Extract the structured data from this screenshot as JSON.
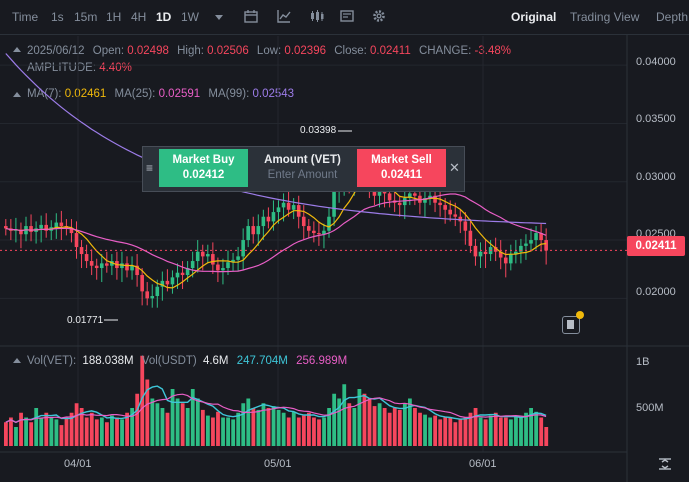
{
  "toolbar": {
    "timeframes": [
      "Time",
      "1s",
      "15m",
      "1H",
      "4H",
      "1D",
      "1W"
    ],
    "active_timeframe": "1D",
    "icons": [
      "dropdown-icon",
      "candle-settings-icon",
      "indicator-icon",
      "chart-type-icon",
      "template-icon",
      "gear-icon"
    ],
    "views": [
      "Original",
      "Trading View",
      "Depth"
    ],
    "active_view": "Original"
  },
  "ohlc": {
    "date": "2025/06/12",
    "open_label": "Open:",
    "open": "0.02498",
    "high_label": "High:",
    "high": "0.02506",
    "low_label": "Low:",
    "low": "0.02396",
    "close_label": "Close:",
    "close": "0.02411",
    "change_label": "CHANGE:",
    "change": "-3.48%",
    "amplitude_label": "AMPLITUDE:",
    "amplitude": "4.40%"
  },
  "ma": {
    "ma7_label": "MA(7):",
    "ma7": "0.02461",
    "ma25_label": "MA(25):",
    "ma25": "0.02591",
    "ma99_label": "MA(99):",
    "ma99": "0.02543"
  },
  "volume_info": {
    "vol_label": "Vol(VET):",
    "vol": "188.038M",
    "usdt_label": "Vol(USDT)",
    "usdt": "4.6M",
    "ma1": "247.704M",
    "ma2": "256.989M"
  },
  "trade_box": {
    "buy_label": "Market Buy",
    "buy_price": "0.02412",
    "amount_label": "Amount (VET)",
    "amount_placeholder": "Enter Amount",
    "sell_label": "Market Sell",
    "sell_price": "0.02411"
  },
  "last_price": "0.02411",
  "colors": {
    "up": "#2ebd85",
    "down": "#f6465d",
    "ma7": "#f0b90b",
    "ma25": "#e85ec6",
    "ma99": "#9c7ce8"
  },
  "chart_data": {
    "type": "candlestick",
    "price_axis": {
      "ticks": [
        "0.04000",
        "0.03500",
        "0.03000",
        "0.02500",
        "0.02000"
      ],
      "range": [
        0.016,
        0.0425
      ]
    },
    "volume_axis": {
      "ticks": [
        "1B",
        "500M"
      ]
    },
    "date_ticks": [
      "04/01",
      "05/01",
      "06/01"
    ],
    "max_label": "0.03398",
    "min_label": "0.01771",
    "candles_close": [
      0.026,
      0.0258,
      0.0259,
      0.0255,
      0.0262,
      0.0257,
      0.026,
      0.0263,
      0.0258,
      0.0261,
      0.0265,
      0.0262,
      0.026,
      0.0256,
      0.0244,
      0.0238,
      0.0232,
      0.0228,
      0.0226,
      0.023,
      0.0228,
      0.0232,
      0.0226,
      0.023,
      0.0224,
      0.0228,
      0.022,
      0.0206,
      0.02,
      0.0202,
      0.021,
      0.0215,
      0.0212,
      0.0218,
      0.0222,
      0.022,
      0.0226,
      0.0232,
      0.024,
      0.0236,
      0.0238,
      0.0229,
      0.0224,
      0.0226,
      0.0231,
      0.0233,
      0.0236,
      0.025,
      0.0262,
      0.0255,
      0.0262,
      0.027,
      0.0266,
      0.0274,
      0.0278,
      0.0282,
      0.0276,
      0.028,
      0.027,
      0.0262,
      0.0258,
      0.0256,
      0.0255,
      0.0258,
      0.027,
      0.0292,
      0.03,
      0.031,
      0.0296,
      0.0305,
      0.0315,
      0.0308,
      0.0292,
      0.0288,
      0.0296,
      0.029,
      0.0284,
      0.0282,
      0.028,
      0.0286,
      0.029,
      0.0288,
      0.0282,
      0.0286,
      0.0288,
      0.0282,
      0.028,
      0.0276,
      0.0272,
      0.027,
      0.0266,
      0.0258,
      0.0245,
      0.0236,
      0.024,
      0.0238,
      0.0244,
      0.024,
      0.0235,
      0.023,
      0.0238,
      0.024,
      0.0245,
      0.0247,
      0.025,
      0.0256,
      0.025,
      0.0241
    ],
    "volume_relative": [
      0.25,
      0.3,
      0.2,
      0.35,
      0.3,
      0.25,
      0.4,
      0.3,
      0.35,
      0.3,
      0.28,
      0.22,
      0.3,
      0.35,
      0.45,
      0.4,
      0.3,
      0.35,
      0.28,
      0.3,
      0.25,
      0.32,
      0.3,
      0.28,
      0.35,
      0.4,
      0.55,
      0.95,
      0.7,
      0.5,
      0.45,
      0.4,
      0.35,
      0.6,
      0.5,
      0.45,
      0.4,
      0.6,
      0.5,
      0.38,
      0.32,
      0.3,
      0.36,
      0.3,
      0.3,
      0.28,
      0.35,
      0.45,
      0.5,
      0.4,
      0.38,
      0.45,
      0.4,
      0.42,
      0.38,
      0.35,
      0.3,
      0.36,
      0.3,
      0.32,
      0.35,
      0.3,
      0.28,
      0.3,
      0.4,
      0.55,
      0.5,
      0.65,
      0.45,
      0.4,
      0.6,
      0.55,
      0.5,
      0.42,
      0.45,
      0.4,
      0.35,
      0.4,
      0.38,
      0.45,
      0.5,
      0.4,
      0.35,
      0.33,
      0.3,
      0.32,
      0.28,
      0.3,
      0.3,
      0.25,
      0.28,
      0.3,
      0.35,
      0.4,
      0.3,
      0.28,
      0.32,
      0.35,
      0.3,
      0.3,
      0.28,
      0.32,
      0.3,
      0.35,
      0.4,
      0.36,
      0.3,
      0.2
    ]
  }
}
